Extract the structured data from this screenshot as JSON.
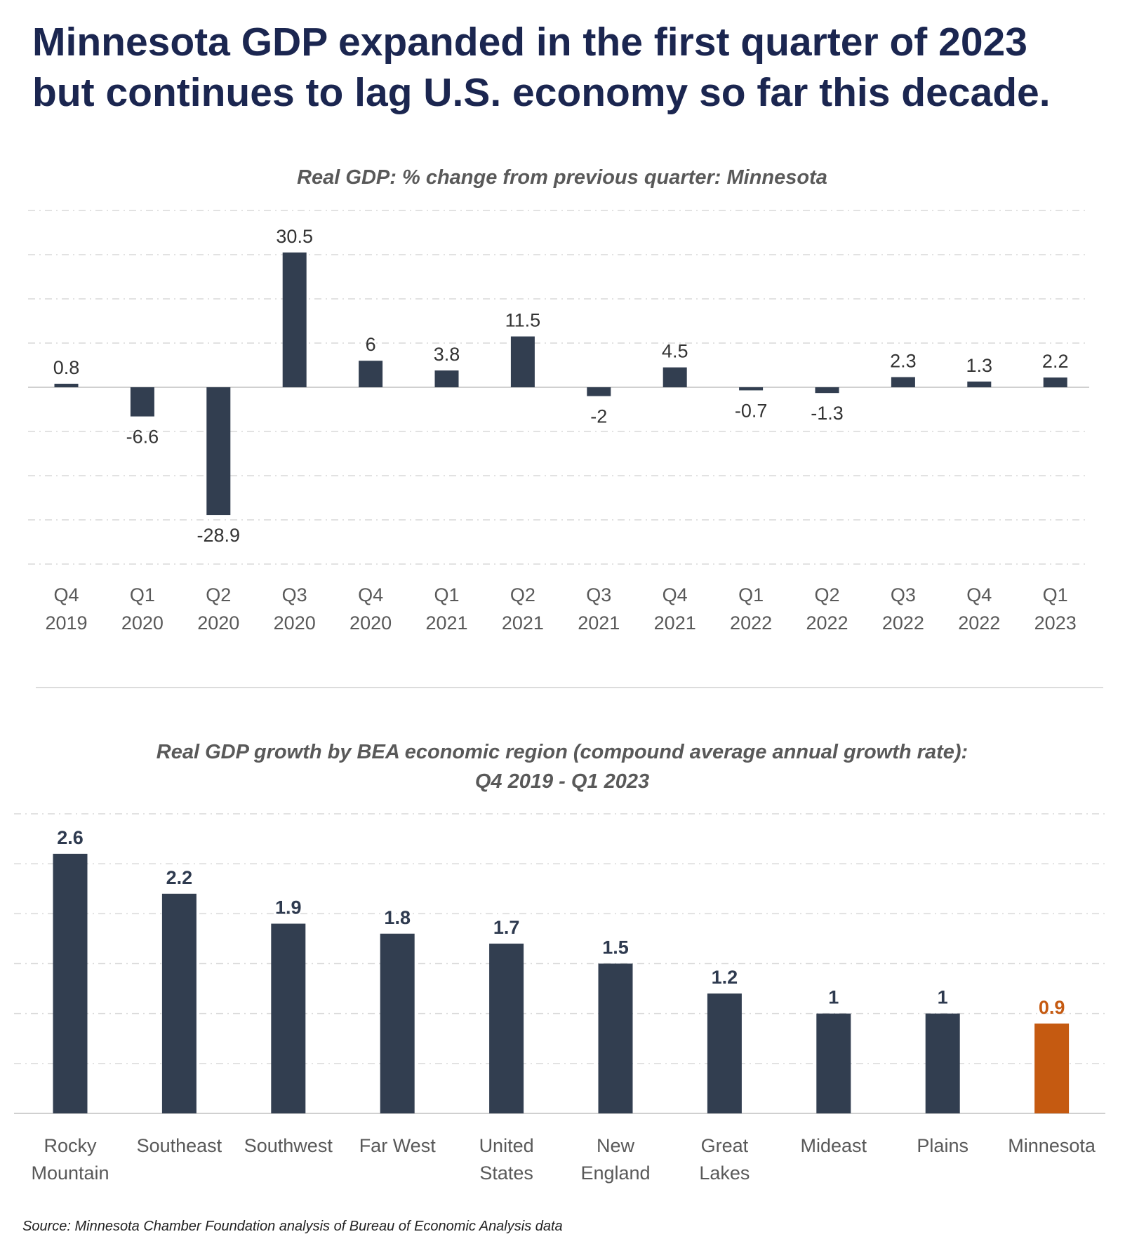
{
  "headline": [
    "Minnesota GDP expanded in the first quarter of 2023",
    "but continues to lag U.S. economy so far this decade."
  ],
  "source": "Source: Minnesota Chamber Foundation analysis of Bureau of Economic Analysis data",
  "colors": {
    "bar": "#323e50",
    "highlight": "#c55a11",
    "title": "#1b2650",
    "grid": "#d9d9d9"
  },
  "chart_data": [
    {
      "type": "bar",
      "title": "Real GDP: % change from previous quarter: Minnesota",
      "categories": [
        [
          "Q4",
          "2019"
        ],
        [
          "Q1",
          "2020"
        ],
        [
          "Q2",
          "2020"
        ],
        [
          "Q3",
          "2020"
        ],
        [
          "Q4",
          "2020"
        ],
        [
          "Q1",
          "2021"
        ],
        [
          "Q2",
          "2021"
        ],
        [
          "Q3",
          "2021"
        ],
        [
          "Q4",
          "2021"
        ],
        [
          "Q1",
          "2022"
        ],
        [
          "Q2",
          "2022"
        ],
        [
          "Q3",
          "2022"
        ],
        [
          "Q4",
          "2022"
        ],
        [
          "Q1",
          "2023"
        ]
      ],
      "values": [
        0.8,
        -6.6,
        -28.9,
        30.5,
        6,
        3.8,
        11.5,
        -2,
        4.5,
        -0.7,
        -1.3,
        2.3,
        1.3,
        2.2
      ],
      "labels": [
        "0.8",
        "-6.6",
        "-28.9",
        "30.5",
        "6",
        "3.8",
        "11.5",
        "-2",
        "4.5",
        "-0.7",
        "-1.3",
        "2.3",
        "1.3",
        "2.2"
      ],
      "ylim": [
        -40,
        40
      ],
      "gridStep": 10,
      "grid": true
    },
    {
      "type": "bar",
      "title": [
        "Real GDP growth by BEA economic region (compound average annual growth rate):",
        "Q4 2019 - Q1 2023"
      ],
      "categories": [
        [
          "Rocky",
          "Mountain"
        ],
        [
          "Southeast"
        ],
        [
          "Southwest"
        ],
        [
          "Far West"
        ],
        [
          "United",
          "States"
        ],
        [
          "New",
          "England"
        ],
        [
          "Great",
          "Lakes"
        ],
        [
          "Mideast"
        ],
        [
          "Plains"
        ],
        [
          "Minnesota"
        ]
      ],
      "values": [
        2.6,
        2.2,
        1.9,
        1.8,
        1.7,
        1.5,
        1.2,
        1,
        1,
        0.9
      ],
      "labels": [
        "2.6",
        "2.2",
        "1.9",
        "1.8",
        "1.7",
        "1.5",
        "1.2",
        "1",
        "1",
        "0.9"
      ],
      "highlight": "Minnesota",
      "ylim": [
        0,
        3
      ],
      "gridStep": 0.5,
      "grid": true
    }
  ]
}
